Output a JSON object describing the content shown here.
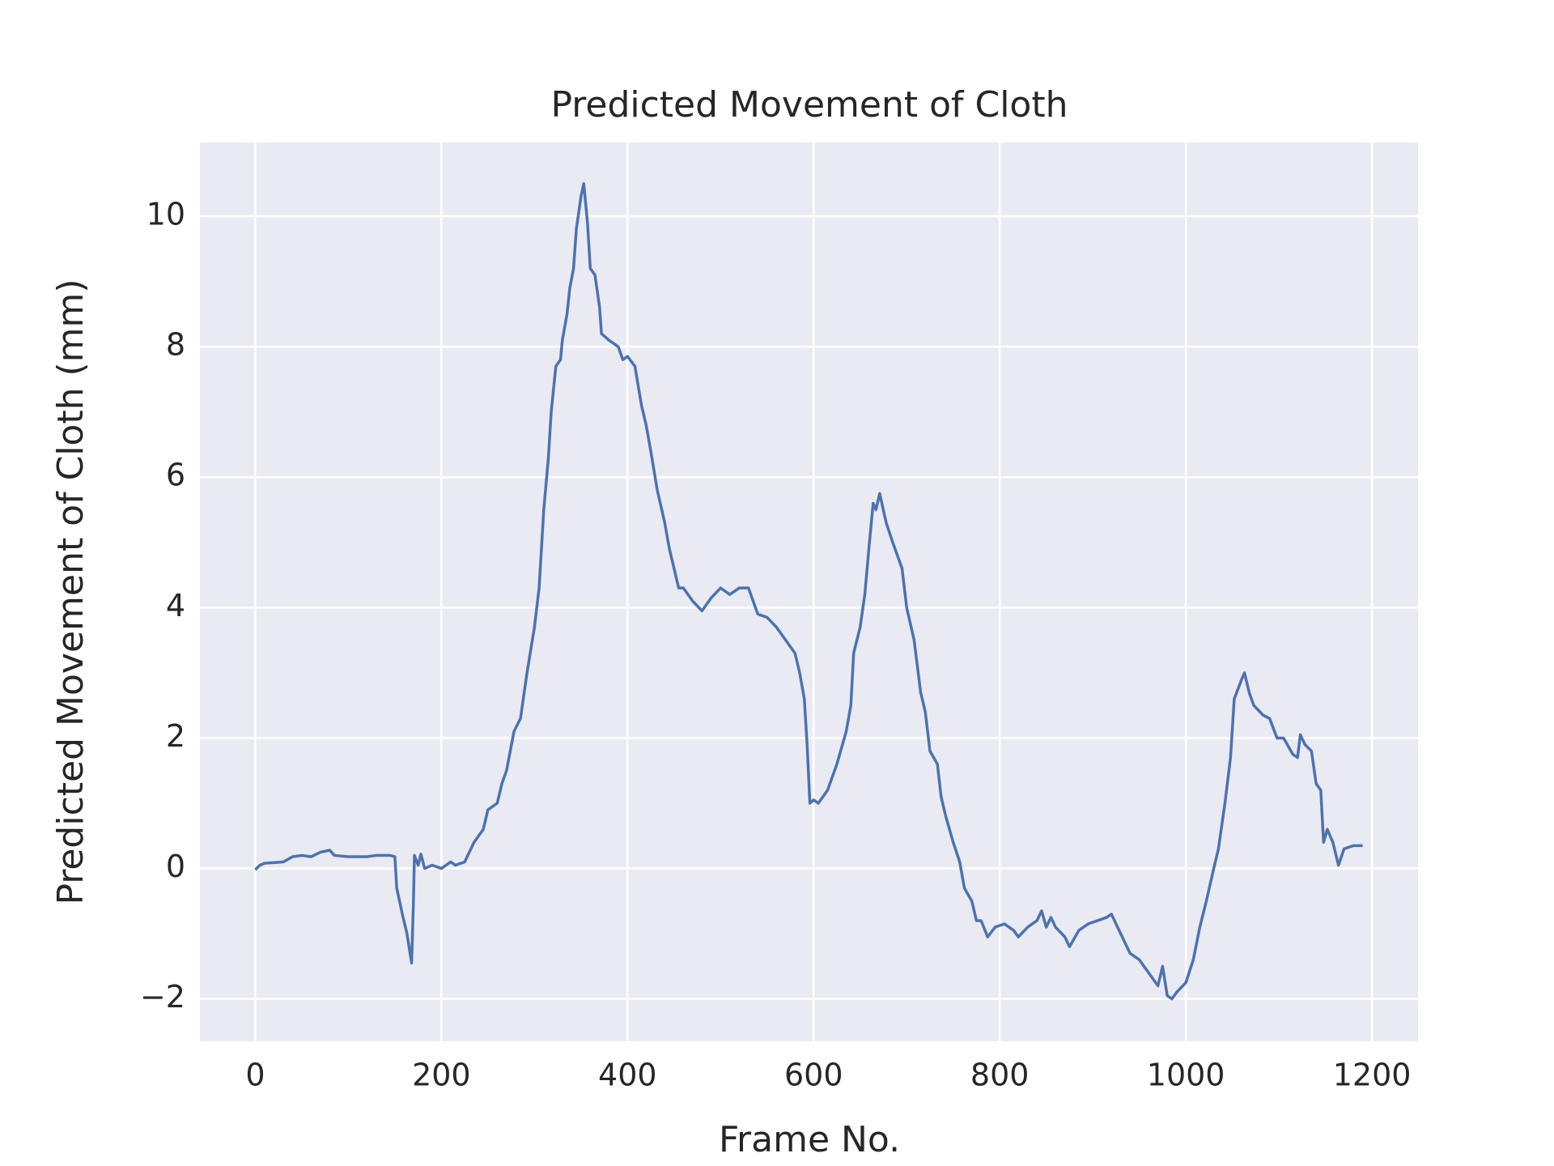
{
  "chart_data": {
    "type": "line",
    "title": "Predicted Movement of Cloth",
    "x_label": "Frame No.",
    "y_label": "Predicted Movement of Cloth (mm)",
    "x": [
      0,
      5,
      10,
      30,
      40,
      50,
      60,
      70,
      80,
      85,
      100,
      120,
      130,
      145,
      150,
      152,
      158,
      163,
      168,
      170,
      171,
      175,
      178,
      182,
      190,
      200,
      210,
      215,
      225,
      235,
      245,
      250,
      260,
      265,
      270,
      278,
      285,
      292,
      300,
      305,
      310,
      315,
      318,
      323,
      328,
      330,
      335,
      338,
      342,
      345,
      350,
      353,
      357,
      360,
      365,
      370,
      372,
      380,
      390,
      395,
      400,
      408,
      415,
      420,
      425,
      432,
      440,
      445,
      450,
      455,
      460,
      470,
      480,
      490,
      500,
      510,
      520,
      530,
      540,
      550,
      560,
      570,
      580,
      585,
      590,
      593,
      596,
      600,
      605,
      615,
      625,
      635,
      640,
      643,
      650,
      655,
      660,
      664,
      667,
      671,
      678,
      685,
      695,
      700,
      708,
      715,
      720,
      725,
      733,
      737,
      742,
      750,
      757,
      762,
      770,
      775,
      780,
      787,
      795,
      805,
      815,
      820,
      830,
      840,
      845,
      850,
      855,
      860,
      870,
      875,
      885,
      895,
      905,
      915,
      920,
      925,
      930,
      940,
      950,
      960,
      970,
      975,
      980,
      985,
      990,
      1000,
      1008,
      1015,
      1022,
      1030,
      1035,
      1042,
      1048,
      1052,
      1060,
      1063,
      1068,
      1073,
      1083,
      1090,
      1098,
      1105,
      1115,
      1120,
      1123,
      1128,
      1135,
      1140,
      1145,
      1148,
      1152,
      1158,
      1164,
      1170,
      1180,
      1190
    ],
    "series": [
      {
        "name": "Predicted Movement of Cloth",
        "color": "#4c72b0",
        "values": [
          -0.02,
          0.05,
          0.08,
          0.1,
          0.18,
          0.2,
          0.18,
          0.25,
          0.28,
          0.2,
          0.18,
          0.18,
          0.2,
          0.2,
          0.18,
          -0.3,
          -0.7,
          -1.0,
          -1.45,
          -0.5,
          0.2,
          0.05,
          0.22,
          0.0,
          0.05,
          0.0,
          0.1,
          0.05,
          0.1,
          0.4,
          0.6,
          0.9,
          1.0,
          1.3,
          1.5,
          2.1,
          2.3,
          3.0,
          3.7,
          4.3,
          5.5,
          6.3,
          7.0,
          7.7,
          7.8,
          8.1,
          8.5,
          8.9,
          9.2,
          9.8,
          10.3,
          10.5,
          9.9,
          9.2,
          9.1,
          8.6,
          8.2,
          8.1,
          8.0,
          7.8,
          7.85,
          7.7,
          7.1,
          6.8,
          6.4,
          5.8,
          5.3,
          4.9,
          4.6,
          4.3,
          4.3,
          4.1,
          3.95,
          4.15,
          4.3,
          4.2,
          4.3,
          4.3,
          3.9,
          3.85,
          3.7,
          3.5,
          3.3,
          3.0,
          2.6,
          1.9,
          1.0,
          1.05,
          1.0,
          1.2,
          1.6,
          2.1,
          2.5,
          3.3,
          3.7,
          4.2,
          5.0,
          5.6,
          5.5,
          5.75,
          5.3,
          5.0,
          4.6,
          4.0,
          3.5,
          2.7,
          2.4,
          1.8,
          1.6,
          1.1,
          0.8,
          0.4,
          0.1,
          -0.3,
          -0.5,
          -0.8,
          -0.8,
          -1.05,
          -0.9,
          -0.85,
          -0.95,
          -1.05,
          -0.9,
          -0.8,
          -0.65,
          -0.9,
          -0.75,
          -0.9,
          -1.05,
          -1.2,
          -0.95,
          -0.85,
          -0.8,
          -0.75,
          -0.7,
          -0.85,
          -1.0,
          -1.3,
          -1.4,
          -1.6,
          -1.8,
          -1.5,
          -1.95,
          -2.0,
          -1.9,
          -1.75,
          -1.4,
          -0.9,
          -0.5,
          0.0,
          0.3,
          1.0,
          1.7,
          2.6,
          2.9,
          3.0,
          2.7,
          2.5,
          2.35,
          2.3,
          2.0,
          2.0,
          1.75,
          1.7,
          2.05,
          1.9,
          1.8,
          1.3,
          1.2,
          0.4,
          0.6,
          0.4,
          0.05,
          0.3,
          0.35,
          0.35
        ]
      }
    ],
    "xlim": [
      -59.5,
      1249.5
    ],
    "ylim": [
      -2.65,
      11.13
    ],
    "xticks": [
      0,
      200,
      400,
      600,
      800,
      1000,
      1200
    ],
    "yticks": [
      {
        "value": -2,
        "label": "−2"
      },
      0,
      2,
      4,
      6,
      8,
      10
    ],
    "grid": true,
    "background": "#eaeaf2"
  }
}
